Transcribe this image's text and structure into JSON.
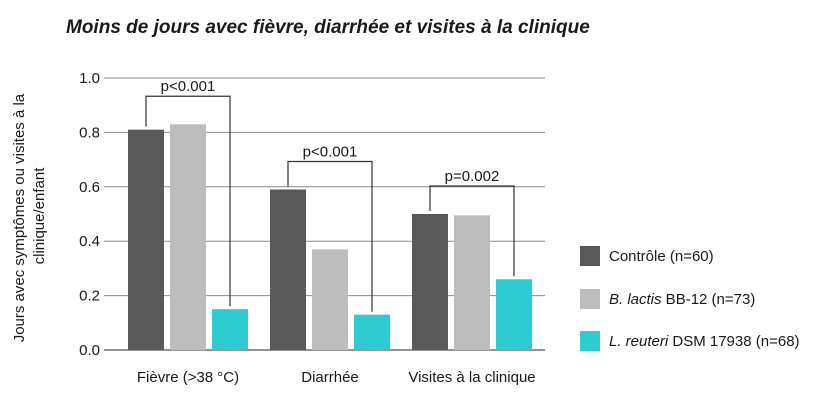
{
  "chart_data": {
    "type": "bar",
    "title": "Moins de jours avec fièvre, diarrhée et visites à la clinique",
    "ylabel_lines": [
      "Jours avec symptômes ou visites à la",
      "clinique/enfant"
    ],
    "ylim": [
      0,
      1.0
    ],
    "yticks": [
      "0.0",
      "0.2",
      "0.4",
      "0.6",
      "0.8",
      "1.0"
    ],
    "grid": true,
    "legend_position": "right",
    "categories": [
      "Fièvre (>38 °C)",
      "Diarrhée",
      "Visites à la clinique"
    ],
    "series": [
      {
        "name_italic": "",
        "name_rest": "Contrôle (n=60)",
        "color": "#595959",
        "values": [
          0.81,
          0.59,
          0.5
        ]
      },
      {
        "name_italic": "B. lactis",
        "name_rest": " BB-12 (n=73)",
        "color": "#bdbdbd",
        "values": [
          0.83,
          0.37,
          0.495
        ]
      },
      {
        "name_italic": "L. reuteri",
        "name_rest": " DSM 17938 (n=68)",
        "color": "#2ecbd3",
        "values": [
          0.15,
          0.13,
          0.26
        ]
      }
    ],
    "annotations": [
      {
        "category": 0,
        "from_series": 0,
        "to_series": 2,
        "text": "p<0.001"
      },
      {
        "category": 1,
        "from_series": 0,
        "to_series": 2,
        "text": "p<0.001"
      },
      {
        "category": 2,
        "from_series": 0,
        "to_series": 2,
        "text": "p=0.002"
      }
    ]
  }
}
